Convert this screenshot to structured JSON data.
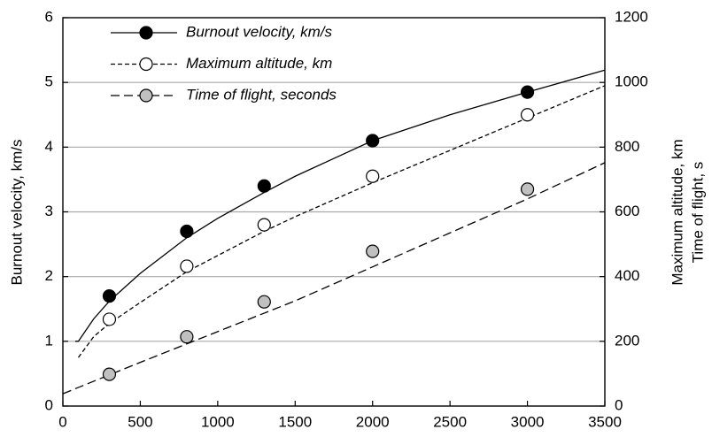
{
  "chart_data": {
    "type": "line",
    "ylabel": "Burnout velocity, km/s",
    "y2label": [
      "Maximum altitude, km",
      "Time of flight, s"
    ],
    "xlim": [
      0,
      3500
    ],
    "xticks": [
      0,
      500,
      1000,
      1500,
      2000,
      2500,
      3000,
      3500
    ],
    "ylim": [
      0,
      6
    ],
    "yticks": [
      0,
      1,
      2,
      3,
      4,
      5,
      6
    ],
    "y2lim": [
      0,
      1200
    ],
    "y2ticks": [
      0,
      200,
      400,
      600,
      800,
      1000,
      1200
    ],
    "grid": true,
    "legend": "upper left",
    "series": [
      {
        "name": "Burnout velocity, km/s",
        "color": "#000000",
        "line_style": "solid",
        "axis": "y",
        "x": [
          300,
          800,
          1300,
          2000,
          3000
        ],
        "values": [
          1.7,
          2.7,
          3.4,
          4.1,
          4.85
        ],
        "fit": {
          "x": [
            80,
            100,
            200,
            300,
            500,
            800,
            1000,
            1300,
            1500,
            2000,
            2500,
            3000,
            3500
          ],
          "values": [
            1.0,
            1.0,
            1.35,
            1.62,
            2.05,
            2.6,
            2.9,
            3.3,
            3.55,
            4.1,
            4.5,
            4.85,
            5.19
          ]
        }
      },
      {
        "name": "Maximum altitude, km",
        "color": "#ffffff",
        "line_style": "dashed",
        "axis": "y2",
        "x": [
          300,
          800,
          1300,
          2000,
          3000
        ],
        "values": [
          268,
          432,
          560,
          710,
          900
        ],
        "fit": {
          "x": [
            100,
            200,
            300,
            500,
            800,
            1000,
            1300,
            1500,
            2000,
            2500,
            3000,
            3500
          ],
          "values": [
            150,
            215,
            255,
            320,
            415,
            465,
            540,
            585,
            690,
            790,
            890,
            990
          ]
        }
      },
      {
        "name": "Time of flight, seconds",
        "color": "#c0c0c0",
        "line_style": "long-dashed",
        "axis": "y2",
        "x": [
          300,
          800,
          1300,
          2000,
          3000
        ],
        "values": [
          98,
          214,
          322,
          478,
          670
        ],
        "fit": {
          "x": [
            0,
            500,
            1000,
            1500,
            2000,
            2500,
            3000,
            3500
          ],
          "values": [
            38,
            135,
            230,
            325,
            430,
            535,
            640,
            752
          ]
        }
      }
    ]
  }
}
